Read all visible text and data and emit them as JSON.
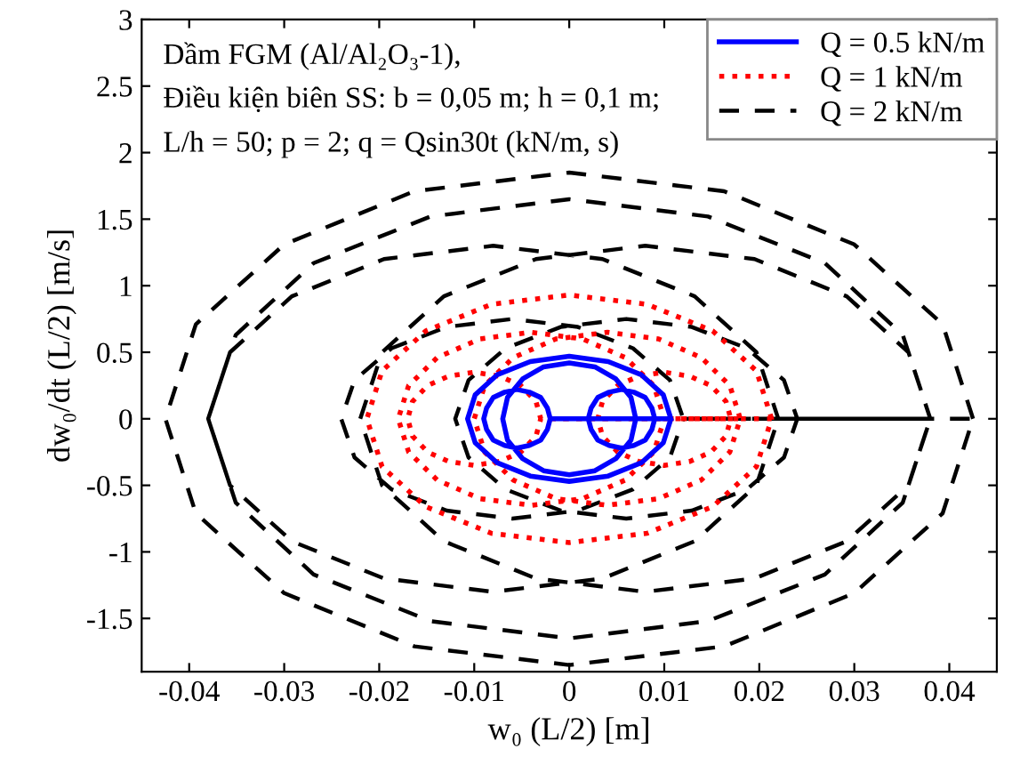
{
  "chart_data": {
    "type": "line",
    "xlabel": "w₀ (L/2) [m]",
    "ylabel": "dw₀/dt (L/2) [m/s]",
    "annotations": [
      "Dầm FGM (Al/Al₂O₃-1),",
      "Điều kiện biên SS: b = 0,05 m; h = 0,1 m;",
      "L/h = 50; p = 2; q = Qsin30t (kN/m, s)"
    ],
    "xlim": [
      -0.045,
      0.045
    ],
    "ylim": [
      -1.9,
      3
    ],
    "xticks": [
      -0.04,
      -0.03,
      -0.02,
      -0.01,
      0,
      0.01,
      0.02,
      0.03,
      0.04
    ],
    "yticks": [
      -1.5,
      -1,
      -0.5,
      0,
      0.5,
      1,
      1.5,
      2,
      2.5,
      3
    ],
    "grid": false,
    "legend": "top right",
    "marker": "none",
    "series": [
      {
        "name": "Q = 0.5 kN/m",
        "color": "#0000ff",
        "line_style": "solid",
        "x": [
          0.0107,
          0.0099,
          0.0076,
          0.0041,
          0,
          -0.0041,
          -0.0076,
          -0.0099,
          -0.0107,
          -0.0099,
          -0.0076,
          -0.0041,
          0,
          0.0041,
          0.0076,
          0.0099,
          0.0107,
          0.007,
          0.0065,
          0.0049,
          0.0027,
          0,
          -0.0027,
          -0.0049,
          -0.0065,
          -0.007,
          -0.0065,
          -0.0049,
          -0.0027,
          0,
          0.0027,
          0.0049,
          0.0065,
          0.007,
          -0.002,
          -0.0023,
          -0.003,
          -0.0042,
          -0.0055,
          -0.0068,
          -0.008,
          -0.0087,
          -0.009,
          -0.0087,
          -0.008,
          -0.0068,
          -0.0055,
          -0.0042,
          -0.003,
          -0.0023,
          -0.002,
          0.009,
          0.0087,
          0.008,
          0.0068,
          0.0055,
          0.0042,
          0.003,
          0.0023,
          0.002,
          0.0023,
          0.003,
          0.0042,
          0.0055,
          0.0068,
          0.008,
          0.0087,
          0.009
        ],
        "values": [
          0,
          0.18,
          0.33,
          0.43,
          0.47,
          0.43,
          0.33,
          0.18,
          0,
          -0.18,
          -0.33,
          -0.43,
          -0.47,
          -0.43,
          -0.33,
          -0.18,
          0,
          0,
          0.16,
          0.3,
          0.39,
          0.42,
          0.39,
          0.3,
          0.16,
          0,
          -0.16,
          -0.3,
          -0.39,
          -0.42,
          -0.39,
          -0.3,
          -0.16,
          0,
          0,
          0.08,
          0.16,
          0.2,
          0.22,
          0.2,
          0.16,
          0.08,
          0,
          -0.08,
          -0.16,
          -0.2,
          -0.22,
          -0.2,
          -0.16,
          -0.08,
          0,
          0,
          0.08,
          0.16,
          0.2,
          0.22,
          0.2,
          0.16,
          0.08,
          0,
          -0.08,
          -0.16,
          -0.2,
          -0.22,
          -0.2,
          -0.16,
          -0.08,
          0
        ]
      },
      {
        "name": "Q = 1 kN/m",
        "color": "#ff0000",
        "line_style": "dotted",
        "x": [
          0.0213,
          0.0197,
          0.0151,
          0.0082,
          0,
          -0.0082,
          -0.0151,
          -0.0197,
          -0.0213,
          -0.0197,
          -0.0151,
          -0.0082,
          0,
          0.0082,
          0.0151,
          0.0197,
          0.0213,
          0.01,
          0.0089,
          0.0059,
          0.0014,
          -0.004,
          -0.0094,
          -0.0139,
          -0.0169,
          -0.018,
          -0.0169,
          -0.0139,
          -0.0094,
          -0.004,
          0.0014,
          0.0059,
          0.0089,
          0.01,
          0.018,
          0.0169,
          0.0139,
          0.0094,
          0.004,
          -0.0014,
          -0.0059,
          -0.0089,
          -0.01,
          -0.0089,
          -0.0059,
          -0.0014,
          0.004,
          0.0094,
          0.0139,
          0.0169,
          0.018,
          -0.003,
          -0.0035,
          -0.0051,
          -0.0073,
          -0.01,
          -0.0127,
          -0.0149,
          -0.0165,
          -0.017,
          -0.0165,
          -0.0149,
          -0.0127,
          -0.01,
          -0.0073,
          -0.0051,
          -0.0035,
          -0.003,
          0.017,
          0.0165,
          0.0149,
          0.0127,
          0.01,
          0.0073,
          0.0051,
          0.0035,
          0.003,
          0.0035,
          0.0051,
          0.0073,
          0.01,
          0.0127,
          0.0149,
          0.0165,
          0.017
        ],
        "values": [
          0,
          0.36,
          0.66,
          0.86,
          0.93,
          0.86,
          0.66,
          0.36,
          0,
          -0.36,
          -0.66,
          -0.86,
          -0.93,
          -0.86,
          -0.66,
          -0.36,
          0,
          0,
          0.25,
          0.46,
          0.6,
          0.65,
          0.6,
          0.46,
          0.25,
          0,
          -0.25,
          -0.46,
          -0.6,
          -0.65,
          -0.6,
          -0.46,
          -0.25,
          0,
          0,
          0.25,
          0.46,
          0.6,
          0.65,
          0.6,
          0.46,
          0.25,
          0,
          -0.25,
          -0.46,
          -0.6,
          -0.65,
          -0.6,
          -0.46,
          -0.25,
          0,
          0,
          0.13,
          0.25,
          0.32,
          0.35,
          0.32,
          0.25,
          0.13,
          0,
          -0.13,
          -0.25,
          -0.32,
          -0.35,
          -0.32,
          -0.25,
          -0.13,
          0,
          0,
          0.13,
          0.25,
          0.32,
          0.35,
          0.32,
          0.25,
          0.13,
          0,
          -0.13,
          -0.25,
          -0.32,
          -0.35,
          -0.32,
          -0.25,
          -0.13,
          0
        ]
      },
      {
        "name": "Q = 2 kN/m",
        "color": "#000000",
        "line_style": "dashed",
        "x": [
          0.0425,
          0.0393,
          0.03,
          0.0163,
          0,
          -0.0163,
          -0.03,
          -0.0393,
          -0.0425,
          -0.0393,
          -0.03,
          -0.0163,
          0,
          0.0163,
          0.03,
          0.0393,
          0.0425,
          0.038,
          0.0351,
          0.0269,
          0.0146,
          0,
          -0.0146,
          -0.0269,
          -0.0351,
          -0.038,
          -0.0351,
          -0.0269,
          -0.0146,
          0,
          0.0146,
          0.0269,
          0.0351,
          0.038,
          0.022,
          0.0197,
          0.0132,
          0.0035,
          -0.008,
          -0.0195,
          -0.0292,
          -0.0357,
          -0.038,
          -0.0357,
          -0.0292,
          -0.0195,
          -0.008,
          0.0035,
          0.0132,
          0.0197,
          0.022,
          0.038,
          0.0357,
          0.0292,
          0.0195,
          0.008,
          -0.0035,
          -0.0132,
          -0.0197,
          -0.022,
          -0.0197,
          -0.0132,
          -0.0035,
          0.008,
          0.0195,
          0.0292,
          0.0357,
          0.038,
          0.012,
          0.0106,
          0.0067,
          0.0009,
          -0.006,
          -0.0129,
          -0.0187,
          -0.0226,
          -0.024,
          -0.0226,
          -0.0187,
          -0.0129,
          -0.006,
          0.0009,
          0.0067,
          0.0106,
          0.012,
          0.024,
          0.0226,
          0.0187,
          0.0129,
          0.006,
          -0.0009,
          -0.0067,
          -0.0106,
          -0.012,
          -0.0106,
          -0.0067,
          -0.0009,
          0.006,
          0.0129,
          0.0187,
          0.0226,
          0.024
        ],
        "values": [
          0,
          0.71,
          1.31,
          1.71,
          1.85,
          1.71,
          1.31,
          0.71,
          0,
          -0.71,
          -1.31,
          -1.71,
          -1.85,
          -1.71,
          -1.31,
          -0.71,
          0,
          0,
          0.63,
          1.17,
          1.52,
          1.65,
          1.52,
          1.17,
          0.63,
          0,
          -0.63,
          -1.17,
          -1.52,
          -1.65,
          -1.52,
          -1.17,
          -0.63,
          0,
          0,
          0.5,
          0.92,
          1.2,
          1.3,
          1.2,
          0.92,
          0.5,
          0,
          -0.5,
          -0.92,
          -1.2,
          -1.3,
          -1.2,
          -0.92,
          -0.5,
          0,
          0,
          0.5,
          0.92,
          1.2,
          1.3,
          1.2,
          0.92,
          0.5,
          0,
          -0.5,
          -0.92,
          -1.2,
          -1.3,
          -1.2,
          -0.92,
          -0.5,
          0,
          0,
          0.29,
          0.53,
          0.69,
          0.75,
          0.69,
          0.53,
          0.29,
          0,
          -0.29,
          -0.53,
          -0.69,
          -0.75,
          -0.69,
          -0.53,
          -0.29,
          0,
          0,
          0.29,
          0.53,
          0.69,
          0.75,
          0.69,
          0.53,
          0.29,
          0,
          -0.29,
          -0.53,
          -0.69,
          -0.75,
          -0.69,
          -0.53,
          -0.29,
          0
        ]
      }
    ]
  }
}
